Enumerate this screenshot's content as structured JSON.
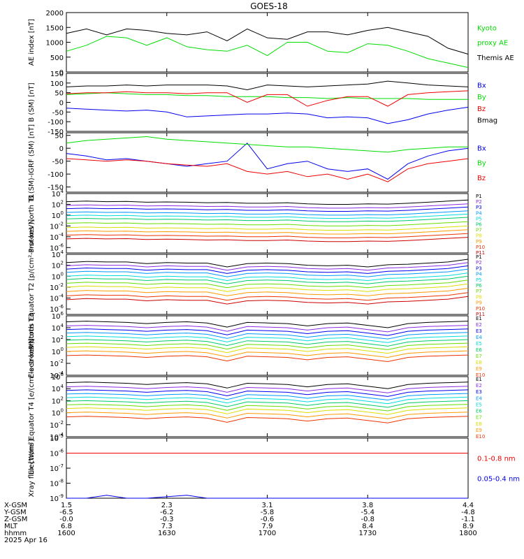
{
  "title": "GOES-18",
  "colors": {
    "black": "#000000",
    "green": "#00dd00",
    "blue": "#0000ee",
    "red": "#ee0000",
    "c1": "#000000",
    "c2": "#8a2be2",
    "c3": "#0000ee",
    "c4": "#0099ff",
    "c5": "#00dddd",
    "c6": "#00cc66",
    "c7": "#66dd00",
    "c8": "#dddd00",
    "c9": "#ff9900",
    "c10": "#ee3300",
    "c11": "#cc0000"
  },
  "chart_data": [
    {
      "type": "line",
      "ylabel": "AE index [nT]",
      "yticks": [
        "2000",
        "1500",
        "1000",
        "500",
        "0"
      ],
      "ylim": [
        0,
        2000
      ],
      "series": [
        {
          "name": "Kyoto proxy AE",
          "color": "green",
          "values": [
            700,
            900,
            1200,
            1150,
            900,
            1150,
            850,
            750,
            700,
            900,
            550,
            1000,
            1000,
            700,
            650,
            950,
            900,
            700,
            450,
            300,
            150
          ]
        },
        {
          "name": "Themis AE",
          "color": "black",
          "values": [
            1300,
            1450,
            1250,
            1450,
            1400,
            1300,
            1250,
            1350,
            1050,
            1450,
            1150,
            1100,
            1350,
            1350,
            1250,
            1400,
            1500,
            1350,
            1200,
            800,
            600
          ]
        }
      ],
      "legend": [
        {
          "text": "Kyoto",
          "color": "green"
        },
        {
          "text": "proxy AE",
          "color": "green"
        },
        {
          "text": "Themis AE",
          "color": "black"
        }
      ]
    },
    {
      "type": "line",
      "ylabel": "B (SM) [nT]",
      "yticks": [
        "150",
        "100",
        "50",
        "0",
        "-50",
        "-100",
        "-150"
      ],
      "ylim": [
        -150,
        150
      ],
      "series": [
        {
          "name": "Bx",
          "color": "blue",
          "values": [
            -30,
            -35,
            -40,
            -45,
            -40,
            -50,
            -75,
            -70,
            -65,
            -60,
            -60,
            -55,
            -60,
            -80,
            -75,
            -80,
            -110,
            -90,
            -60,
            -40,
            -25
          ]
        },
        {
          "name": "By",
          "color": "green",
          "values": [
            40,
            45,
            50,
            45,
            40,
            40,
            35,
            35,
            30,
            30,
            30,
            25,
            25,
            20,
            25,
            20,
            20,
            20,
            15,
            15,
            15
          ]
        },
        {
          "name": "Bz",
          "color": "red",
          "values": [
            45,
            50,
            50,
            55,
            50,
            50,
            45,
            50,
            50,
            0,
            40,
            40,
            -20,
            10,
            30,
            30,
            -20,
            40,
            50,
            55,
            60
          ]
        },
        {
          "name": "Bmag",
          "color": "black",
          "values": [
            80,
            85,
            85,
            90,
            85,
            90,
            90,
            90,
            85,
            65,
            90,
            85,
            80,
            85,
            90,
            95,
            110,
            100,
            90,
            85,
            80
          ]
        }
      ],
      "legend": [
        {
          "text": "Bx",
          "color": "blue"
        },
        {
          "text": "By",
          "color": "green"
        },
        {
          "text": "Bz",
          "color": "red"
        },
        {
          "text": "Bmag",
          "color": "black"
        }
      ]
    },
    {
      "type": "line",
      "ylabel": "B (SM)-IGRF (SM) [nT]",
      "yticks": [
        "50",
        "0",
        "-50",
        "-100",
        "-150"
      ],
      "ylim": [
        -170,
        60
      ],
      "series": [
        {
          "name": "Bx",
          "color": "blue",
          "values": [
            -20,
            -30,
            -45,
            -40,
            -50,
            -60,
            -70,
            -60,
            -50,
            20,
            -80,
            -60,
            -50,
            -80,
            -90,
            -80,
            -120,
            -60,
            -30,
            -10,
            0
          ]
        },
        {
          "name": "By",
          "color": "green",
          "values": [
            20,
            30,
            35,
            40,
            45,
            35,
            30,
            25,
            20,
            15,
            10,
            5,
            5,
            0,
            -5,
            -10,
            -15,
            -5,
            0,
            5,
            5
          ]
        },
        {
          "name": "Bz",
          "color": "red",
          "values": [
            -40,
            -45,
            -50,
            -45,
            -50,
            -60,
            -65,
            -70,
            -60,
            -90,
            -100,
            -90,
            -110,
            -100,
            -120,
            -100,
            -130,
            -80,
            -60,
            -50,
            -40
          ]
        }
      ],
      "legend": [
        {
          "text": "Bx",
          "color": "blue"
        },
        {
          "text": "By",
          "color": "green"
        },
        {
          "text": "Bz",
          "color": "red"
        }
      ]
    },
    {
      "type": "line",
      "log": true,
      "ylabel": "Protons North T1",
      "ylim": [
        -7,
        4
      ],
      "ytick_exps": [
        "4",
        "2",
        "0",
        "-2",
        "-4",
        "-6"
      ],
      "base_log": 2.3,
      "offsets": [
        0,
        -0.7,
        -1.3,
        -2.0,
        -2.6,
        -3.2,
        -4.0,
        -4.8,
        -5.5,
        -6.2,
        -6.9
      ],
      "profile": [
        0.2,
        0.3,
        0.2,
        0.25,
        0.1,
        0.15,
        0.1,
        0.0,
        0.05,
        -0.1,
        -0.1,
        0.0,
        -0.2,
        -0.3,
        -0.3,
        -0.2,
        -0.25,
        -0.1,
        0.1,
        0.3,
        0.5
      ],
      "legend": [
        "P1",
        "P2",
        "P3",
        "P4",
        "P5",
        "P6",
        "P7",
        "P8",
        "P9",
        "P10",
        "P11"
      ]
    },
    {
      "type": "line",
      "log": true,
      "ylabel": "Protons Equator T2 [p/(cm²-s-sr-keV)]",
      "ylim": [
        -7,
        4
      ],
      "ytick_exps": [
        "4",
        "2",
        "0",
        "-2",
        "-4",
        "-6"
      ],
      "base_log": 2.3,
      "offsets": [
        0,
        -0.6,
        -1.2,
        -1.8,
        -2.5,
        -3.1,
        -3.8,
        -4.5,
        -5.3,
        -6.1,
        -6.8
      ],
      "profile": [
        0.2,
        0.4,
        0.3,
        0.3,
        0.0,
        0.2,
        0.1,
        0.1,
        -0.6,
        0.0,
        0.1,
        0.0,
        -0.3,
        -0.4,
        -0.3,
        -0.6,
        -0.2,
        -0.1,
        0.1,
        0.3,
        0.8
      ],
      "legend": [
        "P1",
        "P2",
        "P3",
        "P4",
        "P5",
        "P6",
        "P7",
        "P8",
        "P9",
        "P10",
        "P11"
      ]
    },
    {
      "type": "line",
      "log": true,
      "ylabel": "Electrons North T3",
      "ylim": [
        -4,
        6
      ],
      "ytick_exps": [
        "6",
        "4",
        "2",
        "0",
        "-2",
        "-4"
      ],
      "base_log": 4.7,
      "offsets": [
        0,
        -0.7,
        -1.3,
        -1.9,
        -2.5,
        -3.1,
        -3.7,
        -4.3,
        -5.0,
        -5.7
      ],
      "profile": [
        0.3,
        0.4,
        0.3,
        0.2,
        0.0,
        0.2,
        0.3,
        0.1,
        -0.6,
        0.2,
        0.1,
        0.0,
        -0.4,
        0.0,
        0.1,
        -0.3,
        -0.7,
        0.0,
        0.2,
        0.3,
        0.4
      ],
      "legend": [
        "E1",
        "E2",
        "E3",
        "E4",
        "E5",
        "E6",
        "E7",
        "E8",
        "E9",
        "E10"
      ]
    },
    {
      "type": "line",
      "log": true,
      "ylabel": "Electrons Equator T4 [e/(cm²-s-sr-keV)]",
      "ylim": [
        -4,
        6
      ],
      "ytick_exps": [
        "6",
        "4",
        "2",
        "0",
        "-2",
        "-4"
      ],
      "base_log": 4.7,
      "offsets": [
        0,
        -0.7,
        -1.3,
        -1.9,
        -2.5,
        -3.1,
        -3.7,
        -4.3,
        -5.0,
        -5.7
      ],
      "profile": [
        0.3,
        0.4,
        0.3,
        0.2,
        0.0,
        0.2,
        0.3,
        0.1,
        -0.6,
        0.2,
        0.1,
        0.0,
        -0.4,
        0.0,
        0.1,
        -0.3,
        -0.7,
        0.0,
        0.2,
        0.3,
        0.4
      ],
      "legend": [
        "E1",
        "E2",
        "E3",
        "E4",
        "E5",
        "E6",
        "E7",
        "E8",
        "E9",
        "E10"
      ]
    },
    {
      "type": "line",
      "log": true,
      "ylabel": "Xray flux [W/m²]",
      "ylim": [
        -9,
        -5
      ],
      "ytick_exps": [
        "-5",
        "-6",
        "-7",
        "-8",
        "-9"
      ],
      "series": [
        {
          "name": "0.1-0.8 nm",
          "color": "red",
          "values": [
            -6,
            -6,
            -6,
            -6,
            -6,
            -6,
            -6,
            -6,
            -6,
            -6,
            -6,
            -6,
            -6,
            -6,
            -6,
            -6,
            -6,
            -6,
            -6,
            -6,
            -6
          ]
        },
        {
          "name": "0.05-0.4 nm",
          "color": "blue",
          "values": [
            -9.2,
            -9.2,
            -8.8,
            -9.2,
            -9.2,
            -8.9,
            -8.8,
            -9.1,
            -9.2,
            -9.2,
            -9.2,
            -9.2,
            -9.2,
            -9.2,
            -9.2,
            -9.2,
            -9.2,
            -9.2,
            -9.2,
            -9.2,
            -9.2
          ]
        }
      ],
      "legend": [
        {
          "text": "0.1-0.8 nm",
          "color": "red"
        },
        {
          "text": "0.05-0.4 nm",
          "color": "blue"
        }
      ]
    }
  ],
  "footer": {
    "labels": [
      "X-GSM",
      "Y-GSM",
      "Z-GSM",
      "MLT",
      "hhmm",
      "2025 Apr 16"
    ],
    "columns": [
      [
        "1.5",
        "-6.5",
        "-0.0",
        "6.8",
        "1600"
      ],
      [
        "2.3",
        "-6.2",
        "-0.3",
        "7.3",
        "1630"
      ],
      [
        "3.1",
        "-5.8",
        "-0.6",
        "7.9",
        "1700"
      ],
      [
        "3.8",
        "-5.4",
        "-0.8",
        "8.4",
        "1730"
      ],
      [
        "4.4",
        "-4.8",
        "-1.1",
        "8.9",
        "1800"
      ]
    ]
  }
}
